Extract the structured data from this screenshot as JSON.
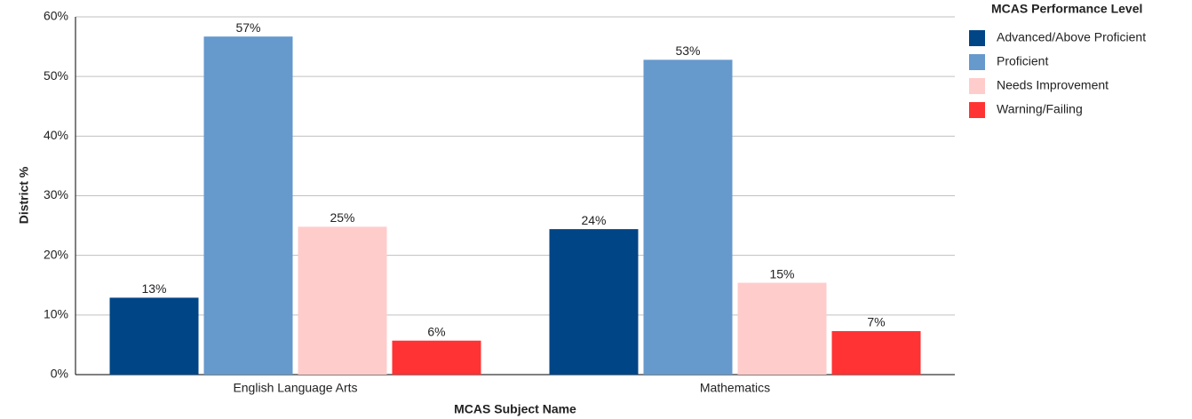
{
  "chart_data": {
    "type": "bar",
    "y_label": "District %",
    "x_label": "MCAS Subject Name",
    "legend_title": "MCAS Performance Level",
    "legend_position": "right",
    "grid": true,
    "categories": [
      "English Language Arts",
      "Mathematics"
    ],
    "ylim": [
      0,
      60
    ],
    "yticks": [
      {
        "value": 0,
        "label": "0%"
      },
      {
        "value": 10,
        "label": "10%"
      },
      {
        "value": 20,
        "label": "20%"
      },
      {
        "value": 30,
        "label": "30%"
      },
      {
        "value": 40,
        "label": "40%"
      },
      {
        "value": 50,
        "label": "50%"
      },
      {
        "value": 60,
        "label": "60%"
      }
    ],
    "series": [
      {
        "name": "Advanced/Above Proficient",
        "color": "#004586",
        "values": [
          12.9,
          24.4
        ],
        "value_labels": [
          "13%",
          "24%"
        ]
      },
      {
        "name": "Proficient",
        "color": "#6699cc",
        "values": [
          56.7,
          52.8
        ],
        "value_labels": [
          "57%",
          "53%"
        ]
      },
      {
        "name": "Needs Improvement",
        "color": "#ffcccc",
        "values": [
          24.8,
          15.4
        ],
        "value_labels": [
          "25%",
          "15%"
        ]
      },
      {
        "name": "Warning/Failing",
        "color": "#ff3333",
        "values": [
          5.7,
          7.3
        ],
        "value_labels": [
          "6%",
          "7%"
        ]
      }
    ]
  }
}
